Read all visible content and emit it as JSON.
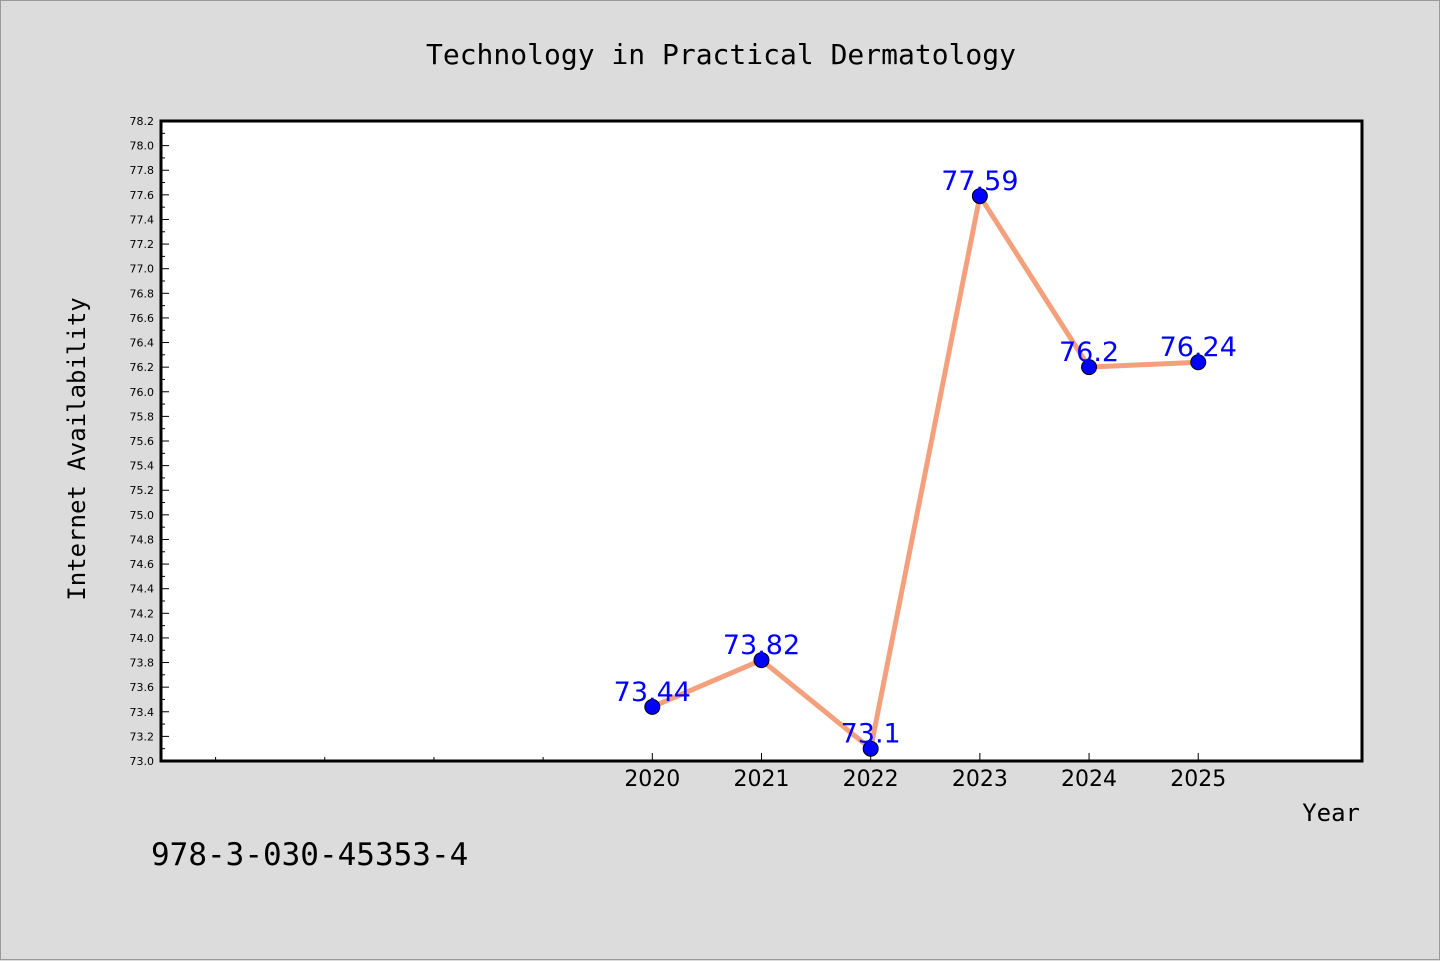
{
  "chart_data": {
    "type": "line",
    "title": "Technology in Practical Dermatology",
    "xlabel": "Year",
    "ylabel": "Internet Availability",
    "x": [
      "2020",
      "2021",
      "2022",
      "2023",
      "2024",
      "2025"
    ],
    "series": [
      {
        "values": [
          73.44,
          73.82,
          73.1,
          77.59,
          76.2,
          76.24
        ],
        "data_labels": [
          "73.44",
          "73.82",
          "73.1",
          "77.59",
          "76.2",
          "76.24"
        ]
      }
    ],
    "ylim": [
      73.0,
      78.2
    ],
    "xlim": [
      2015.5,
      2026.5
    ],
    "y_ticks": [
      "73.0",
      "73.2",
      "73.4",
      "73.6",
      "73.8",
      "74.0",
      "74.2",
      "74.4",
      "74.6",
      "74.8",
      "75.0",
      "75.2",
      "75.4",
      "75.6",
      "75.8",
      "76.0",
      "76.2",
      "76.4",
      "76.6",
      "76.8",
      "77.0",
      "77.2",
      "77.4",
      "77.6",
      "77.8",
      "78.0",
      "78.2"
    ],
    "x_minor_ticks": [
      2016,
      2017,
      2018,
      2019
    ],
    "grid": false,
    "legend": "none",
    "colors": {
      "line": "#f4a07c",
      "marker": "#0000ff",
      "label": "#0000ff",
      "background": "#dcdcdc",
      "plot_background": "#ffffff"
    }
  },
  "footnote": "978-3-030-45353-4"
}
